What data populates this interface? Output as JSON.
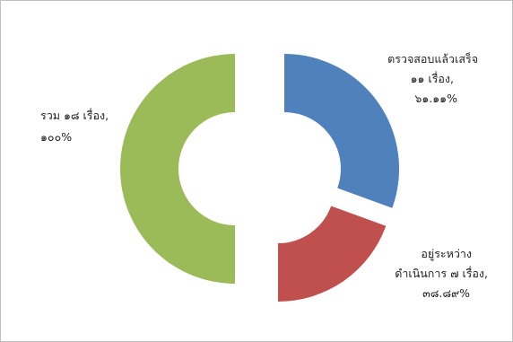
{
  "chart_data": {
    "type": "pie",
    "variant": "doughnut-exploded",
    "series": [
      {
        "label_lines": [
          "ตรวจสอบแล้วเสร็จ",
          "๑๑ เรื่อง,",
          "๖๑.๑๑%"
        ],
        "value": 61.11,
        "color": "#4f81bd"
      },
      {
        "label_lines": [
          "อยู่ระหว่าง",
          "ดำเนินการ ๗ เรื่อง,",
          "๓๘.๘๙%"
        ],
        "value": 38.89,
        "color": "#c0504d"
      },
      {
        "label_lines": [
          "รวม ๑๘ เรื่อง,",
          "๑๐๐%"
        ],
        "value": 100,
        "color": "#9bbb59"
      }
    ]
  }
}
